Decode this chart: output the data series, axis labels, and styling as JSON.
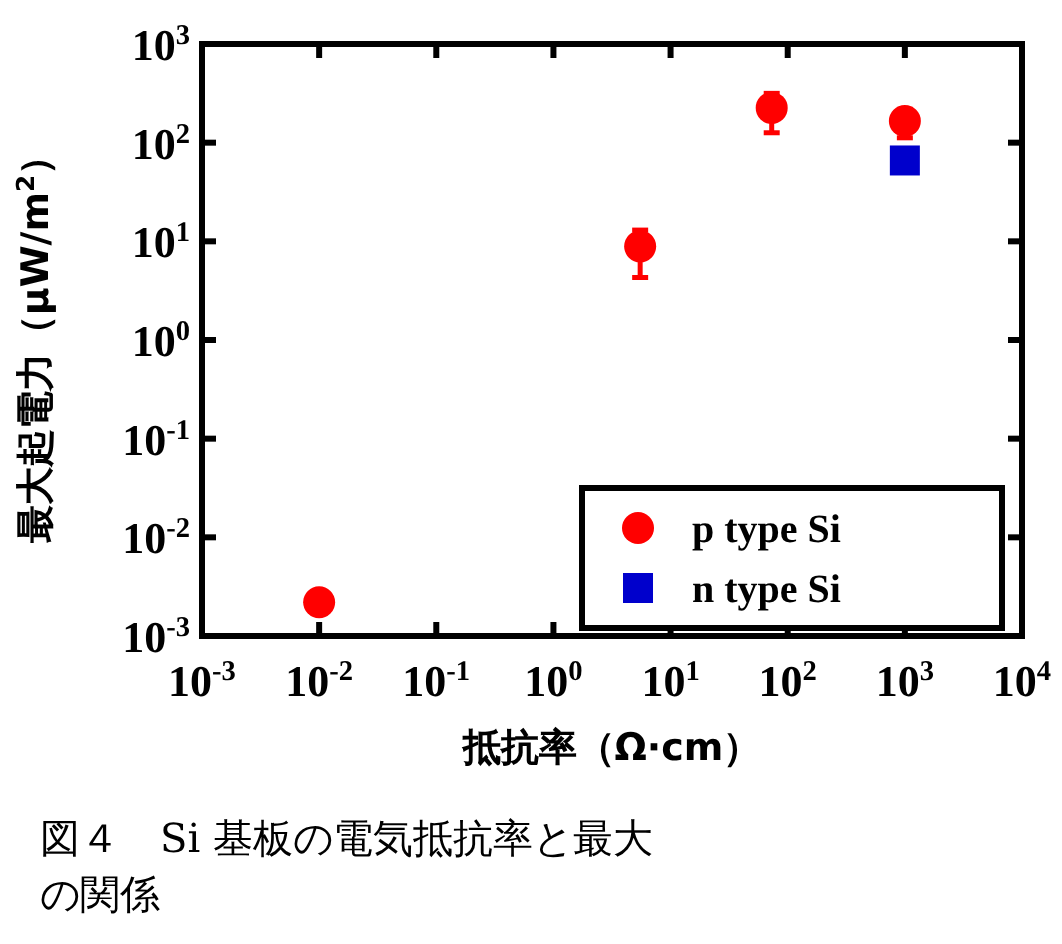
{
  "chart_data": {
    "type": "scatter",
    "xlabel": "抵抗率（Ω·cm）",
    "ylabel": "最大起電力（μW/m$^{2}$）",
    "log": "xy",
    "xlim": [
      0.001,
      10000
    ],
    "ylim": [
      0.001,
      1000
    ],
    "xticks": [
      {
        "value": 0.001,
        "label": "10$^{-3}$"
      },
      {
        "value": 0.01,
        "label": "10$^{-2}$"
      },
      {
        "value": 0.1,
        "label": "10$^{-1}$"
      },
      {
        "value": 1,
        "label": "10$^{0}$"
      },
      {
        "value": 10,
        "label": "10$^{1}$"
      },
      {
        "value": 100,
        "label": "10$^{2}$"
      },
      {
        "value": 1000,
        "label": "10$^{3}$"
      },
      {
        "value": 10000,
        "label": "10$^{4}$"
      }
    ],
    "yticks": [
      {
        "value": 0.001,
        "label": "10$^{-3}$"
      },
      {
        "value": 0.01,
        "label": "10$^{-2}$"
      },
      {
        "value": 0.1,
        "label": "10$^{-1}$"
      },
      {
        "value": 1,
        "label": "10$^{0}$"
      },
      {
        "value": 10,
        "label": "10$^{1}$"
      },
      {
        "value": 100,
        "label": "10$^{2}$"
      },
      {
        "value": 1000,
        "label": "10$^{3}$"
      }
    ],
    "legend": "bottom right",
    "grid": false,
    "series": [
      {
        "name": "p type Si",
        "color": "#ff0000",
        "marker": "circle",
        "x": [
          0.01,
          5.5,
          73,
          1000
        ],
        "values": [
          0.0022,
          8.9,
          225,
          166
        ],
        "errors": [
          null,
          [
            4.3,
            13
          ],
          [
            126,
            316
          ],
          [
            112,
            218
          ]
        ]
      },
      {
        "name": "n type Si",
        "color": "#0000cc",
        "marker": "square",
        "x": [
          1000
        ],
        "values": [
          66
        ]
      }
    ],
    "annotations": [
      "図４　Si 基板の電気抵抗率と最大",
      "の関係"
    ]
  }
}
